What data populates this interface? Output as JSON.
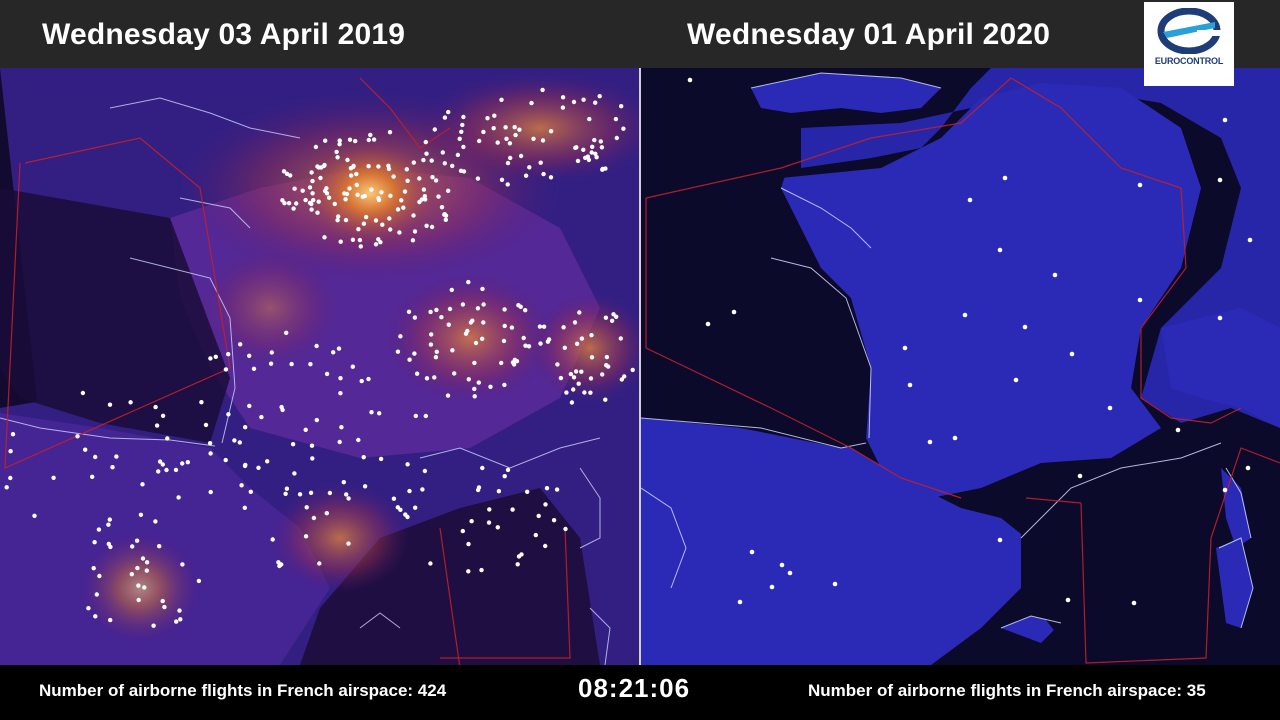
{
  "header": {
    "left_date": "Wednesday 03 April 2019",
    "right_date": "Wednesday 01 April 2020"
  },
  "logo": {
    "name": "EUROCONTROL",
    "icon": "eurocontrol-logo-icon",
    "colors": {
      "primary": "#1d3c78",
      "accent": "#2aa0d8"
    }
  },
  "maps": {
    "left": {
      "year": "2019",
      "heat_colors": [
        "#2a1f8a",
        "#7a2060",
        "#d86a28",
        "#ffd27a"
      ]
    },
    "right": {
      "year": "2020",
      "land_color": "#2a2aa8",
      "sea_color": "#0b0a2a"
    },
    "border_color": "#c0202c",
    "flight_dot_color": "#ffffff"
  },
  "footer": {
    "left_count": "Number of airborne flights in French airspace: 424",
    "clock": "08:21:06",
    "right_count": "Number of airborne flights in French airspace: 35"
  }
}
